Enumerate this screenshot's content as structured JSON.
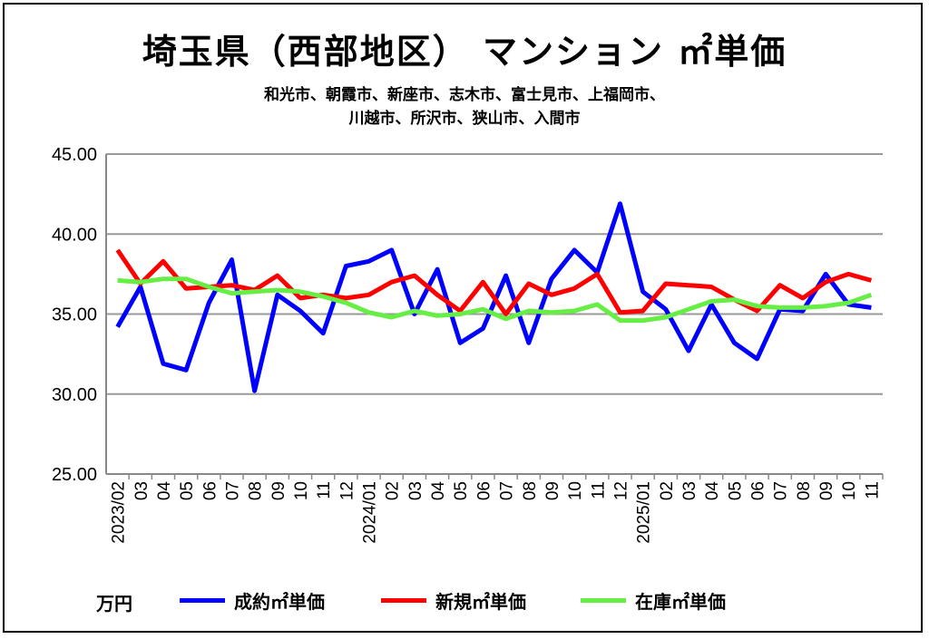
{
  "chart_data": {
    "type": "line",
    "title": "埼玉県（西部地区） マンション ㎡単価",
    "subtitle_lines": [
      "和光市、朝霞市、新座市、志木市、富士見市、上福岡市、",
      "川越市、所沢市、狭山市、入間市"
    ],
    "ylabel": "万円",
    "ylim": [
      25,
      45
    ],
    "yticks": [
      "25.00",
      "30.00",
      "35.00",
      "40.00",
      "45.00"
    ],
    "grid": true,
    "legend_position": "bottom",
    "categories": [
      "2023/02",
      "03",
      "04",
      "05",
      "06",
      "07",
      "08",
      "09",
      "10",
      "11",
      "12",
      "2024/01",
      "02",
      "03",
      "04",
      "05",
      "06",
      "07",
      "08",
      "09",
      "10",
      "11",
      "12",
      "2025/01",
      "02",
      "03",
      "04",
      "05",
      "06",
      "07",
      "08",
      "09",
      "10",
      "11"
    ],
    "series": [
      {
        "name": "成約㎡単価",
        "color": "#0000ff",
        "values": [
          34.2,
          36.7,
          31.9,
          31.5,
          35.7,
          38.4,
          30.2,
          36.2,
          35.2,
          33.8,
          38.0,
          38.3,
          39.0,
          35.0,
          37.8,
          33.2,
          34.1,
          37.4,
          33.2,
          37.2,
          39.0,
          37.6,
          41.9,
          36.4,
          35.3,
          32.7,
          35.6,
          33.2,
          32.2,
          35.3,
          35.2,
          37.5,
          35.6,
          35.4
        ]
      },
      {
        "name": "新規㎡単価",
        "color": "#ff0000",
        "values": [
          39.0,
          36.9,
          38.3,
          36.6,
          36.7,
          36.8,
          36.5,
          37.4,
          36.0,
          36.2,
          36.0,
          36.2,
          37.0,
          37.4,
          36.2,
          35.2,
          37.0,
          35.0,
          36.9,
          36.2,
          36.6,
          37.5,
          35.1,
          35.2,
          36.9,
          36.8,
          36.7,
          35.9,
          35.2,
          36.8,
          36.0,
          37.0,
          37.5,
          37.1
        ]
      },
      {
        "name": "在庫㎡単価",
        "color": "#66ee44",
        "values": [
          37.1,
          37.0,
          37.2,
          37.2,
          36.7,
          36.3,
          36.4,
          36.5,
          36.4,
          36.1,
          35.7,
          35.1,
          34.8,
          35.2,
          34.9,
          35.0,
          35.3,
          34.7,
          35.2,
          35.1,
          35.2,
          35.6,
          34.6,
          34.6,
          34.8,
          35.3,
          35.8,
          35.9,
          35.5,
          35.4,
          35.4,
          35.5,
          35.7,
          36.2
        ]
      }
    ]
  }
}
